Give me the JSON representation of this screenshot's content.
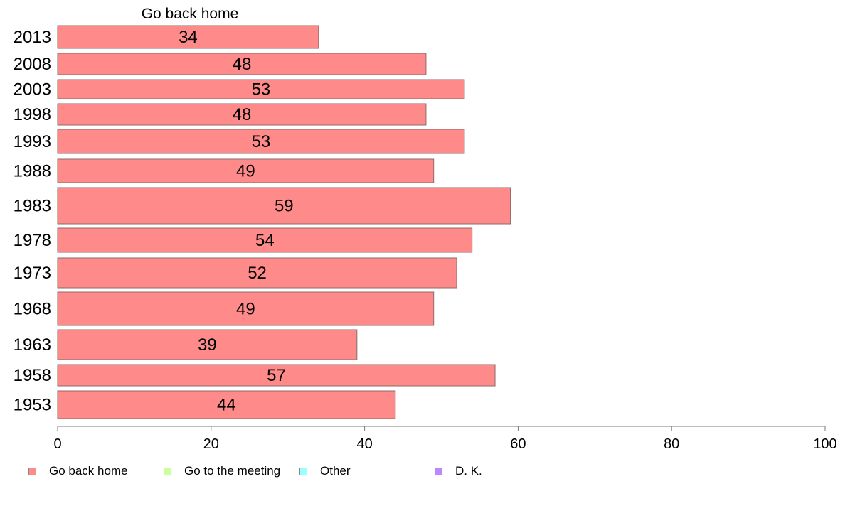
{
  "chart_data": {
    "type": "bar",
    "orientation": "horizontal",
    "title": "Go back home",
    "categories": [
      "2013",
      "2008",
      "2003",
      "1998",
      "1993",
      "1988",
      "1983",
      "1978",
      "1973",
      "1968",
      "1963",
      "1958",
      "1953"
    ],
    "series": [
      {
        "name": "Go back home",
        "values": [
          34,
          48,
          53,
          48,
          53,
          49,
          59,
          54,
          52,
          49,
          39,
          57,
          44
        ],
        "color": "#ff8a8a"
      }
    ],
    "xlim": [
      0,
      100
    ],
    "x_ticks": [
      0,
      20,
      40,
      60,
      80,
      100
    ],
    "x_tick_labels": [
      "0",
      "20",
      "40",
      "60",
      "80",
      "100"
    ],
    "grid": false,
    "legend": {
      "placement": "bottom",
      "entries": [
        {
          "label": "Go back home",
          "color": "#ff8a8a"
        },
        {
          "label": "Go to the meeting",
          "color": "#ccff99"
        },
        {
          "label": "Other",
          "color": "#99ffff"
        },
        {
          "label": "D. K.",
          "color": "#bb88ff"
        }
      ]
    }
  }
}
